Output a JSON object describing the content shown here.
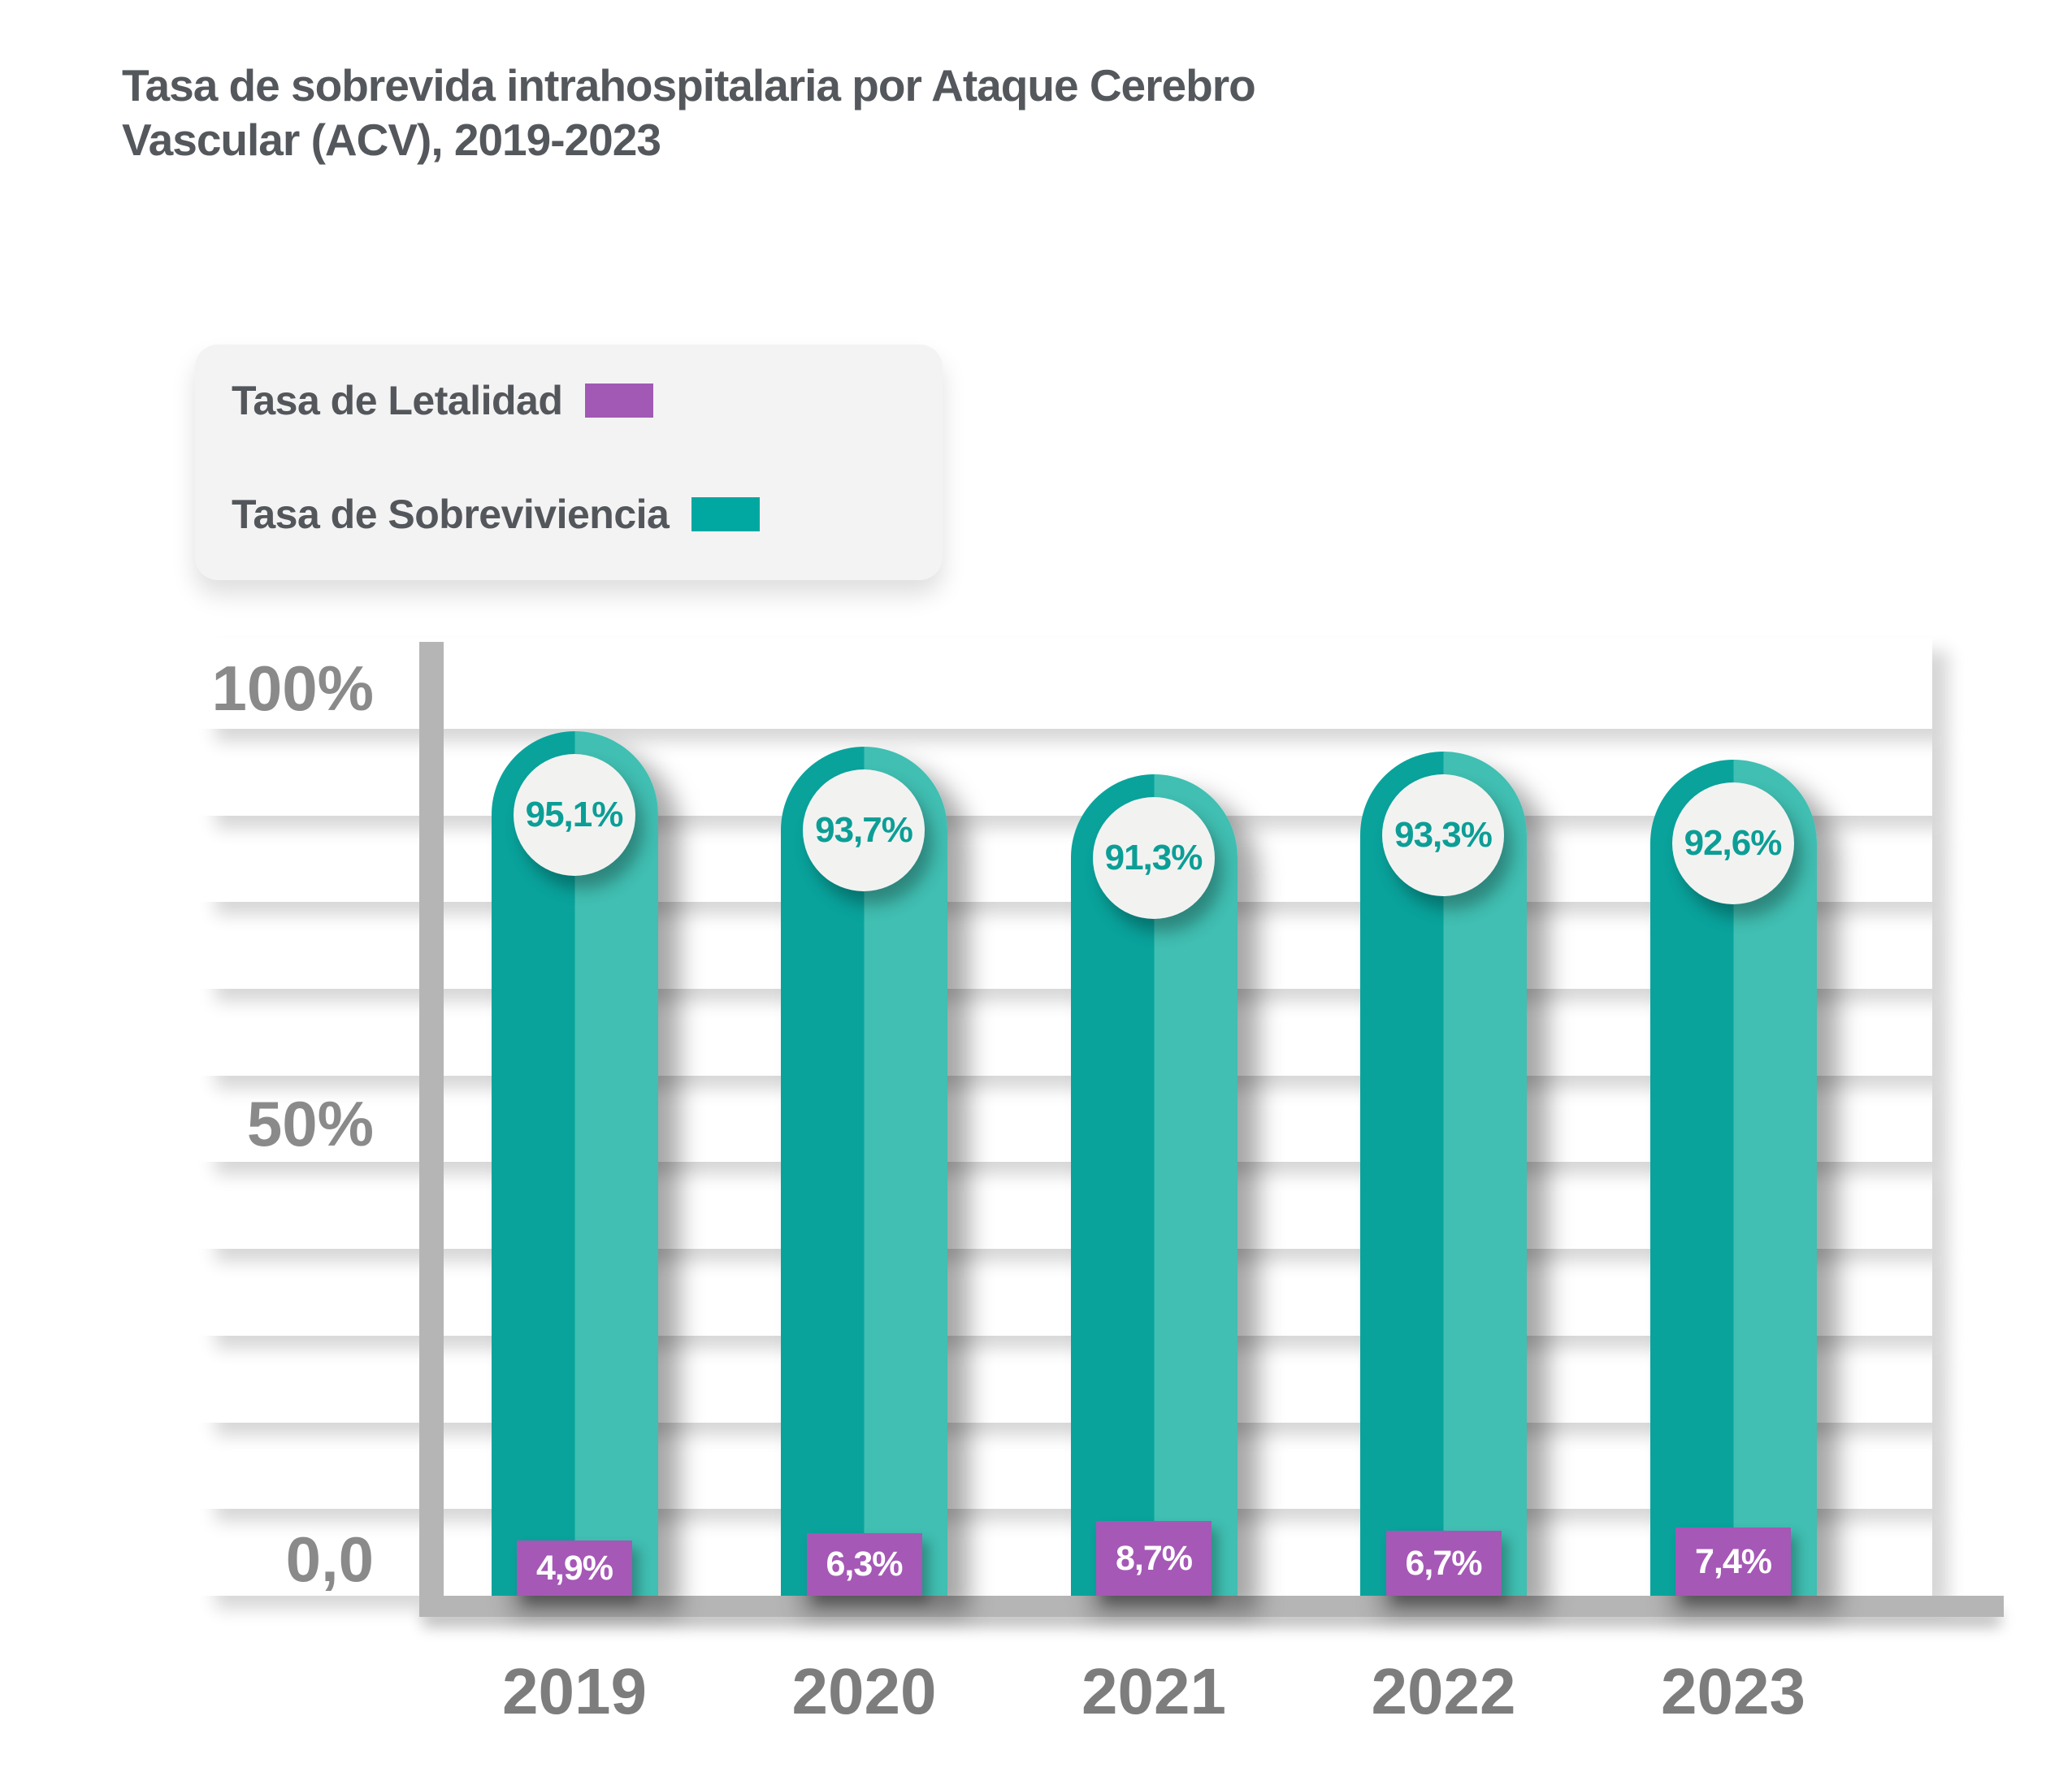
{
  "title": "Tasa de sobrevida intrahospitalaria por Ataque Cerebro Vascular (ACV), 2019-2023",
  "legend": {
    "items": [
      {
        "label": "Tasa de Letalidad",
        "color": "#a159b5"
      },
      {
        "label": "Tasa de Sobreviviencia",
        "color": "#00a8a1"
      }
    ]
  },
  "y_axis": {
    "labels": [
      "100%",
      "50%",
      "0,0"
    ]
  },
  "chart_data": {
    "type": "bar",
    "title": "Tasa de sobrevida intrahospitalaria por Ataque Cerebro Vascular (ACV), 2019-2023",
    "categories": [
      "2019",
      "2020",
      "2021",
      "2022",
      "2023"
    ],
    "series": [
      {
        "name": "Tasa de Letalidad",
        "values": [
          4.9,
          6.3,
          8.7,
          6.7,
          7.4
        ],
        "labels": [
          "4,9%",
          "6,3%",
          "8,7%",
          "6,7%",
          "7,4%"
        ],
        "color": "#a558b6"
      },
      {
        "name": "Tasa de Sobreviviencia",
        "values": [
          95.1,
          93.7,
          91.3,
          93.3,
          92.6
        ],
        "labels": [
          "95,1%",
          "93,7%",
          "91,3%",
          "93,3%",
          "92,6%"
        ],
        "color_dark": "#09a39c",
        "color_light": "#40bfb2"
      }
    ],
    "xlabel": "",
    "ylabel": "",
    "ylim": [
      0,
      100
    ],
    "grid": "horizontal, every 10%",
    "legend_position": "top-left"
  }
}
